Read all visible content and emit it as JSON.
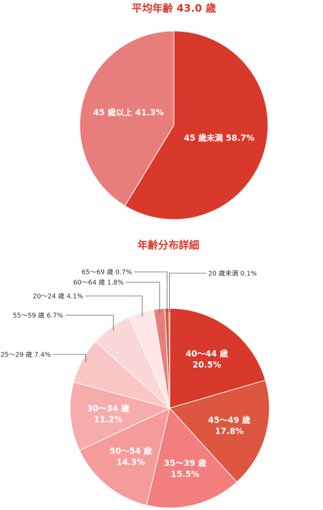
{
  "chart_data": [
    {
      "type": "pie",
      "title": "平均年齢 43.0 歳",
      "slices": [
        {
          "label": "45 歳未満 58.7%",
          "value": 58.7,
          "color": "#d8392b"
        },
        {
          "label": "45 歳以上 41.3%",
          "value": 41.3,
          "color": "#e87e7c"
        }
      ]
    },
    {
      "type": "pie",
      "title": "年齢分布詳細",
      "slices": [
        {
          "line1": "40～44 歳",
          "line2": "20.5%",
          "value": 20.5,
          "color": "#d8392b",
          "placement": "inside"
        },
        {
          "line1": "45～49 歳",
          "line2": "17.8%",
          "value": 17.8,
          "color": "#dc5640",
          "placement": "inside"
        },
        {
          "line1": "35～39 歳",
          "line2": "15.5%",
          "value": 15.5,
          "color": "#f27e7e",
          "placement": "inside"
        },
        {
          "line1": "50～54 歳",
          "line2": "14.3%",
          "value": 14.3,
          "color": "#f59b9a",
          "placement": "inside"
        },
        {
          "line1": "30～34 歳",
          "line2": "11.2%",
          "value": 11.2,
          "color": "#f6acab",
          "placement": "inside"
        },
        {
          "label": "25～29 歳 7.4%",
          "value": 7.4,
          "color": "#f8c6c5",
          "placement": "outside"
        },
        {
          "label": "55～59 歳 6.7%",
          "value": 6.7,
          "color": "#fad8d7",
          "placement": "outside"
        },
        {
          "label": "20～24 歳 4.1%",
          "value": 4.1,
          "color": "#fce7e6",
          "placement": "outside"
        },
        {
          "label": "60～64 歳 1.8%",
          "value": 1.8,
          "color": "#e87e7c",
          "placement": "outside"
        },
        {
          "label": "65～69 歳 0.7%",
          "value": 0.7,
          "color": "#e05a3e",
          "placement": "outside"
        },
        {
          "label": "20 歳未満 0.1%",
          "value": 0.1,
          "color": "#ef6a1c",
          "placement": "outside"
        }
      ]
    }
  ]
}
